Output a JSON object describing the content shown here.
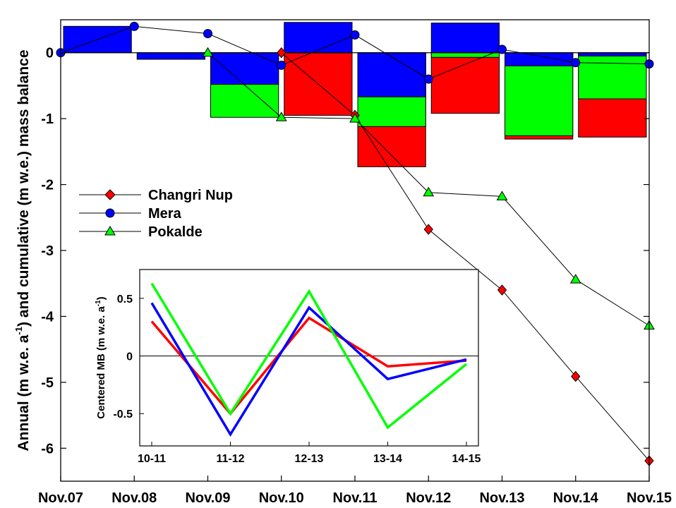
{
  "chart_data": [
    {
      "type": "bar+line",
      "title": "",
      "ylabel_parts": [
        "Annual (m w.e. a",
        "-1",
        ") and cumulative (m w.e.) mass balance"
      ],
      "xlabel": "",
      "x_ticks": [
        "Nov.07",
        "Nov.08",
        "Nov.09",
        "Nov.10",
        "Nov.11",
        "Nov.12",
        "Nov.13",
        "Nov.14",
        "Nov.15"
      ],
      "y_ticks": [
        "0",
        "-1",
        "-2",
        "-3",
        "-4",
        "-5",
        "-6"
      ],
      "ylim": [
        -6.5,
        0.5
      ],
      "legend": {
        "placement": "center-left"
      },
      "colors": {
        "changri": "#ff0000",
        "mera": "#0000ff",
        "pokalde": "#00ff00"
      },
      "annual_bars": {
        "mera": [
          {
            "period": "Nov.07-Nov.08",
            "value": 0.4
          },
          {
            "period": "Nov.08-Nov.09",
            "value": -0.1
          },
          {
            "period": "Nov.09-Nov.10",
            "value": -0.48
          },
          {
            "period": "Nov.10-Nov.11",
            "value": 0.46
          },
          {
            "period": "Nov.11-Nov.12",
            "value": -0.67
          },
          {
            "period": "Nov.12-Nov.13",
            "value": 0.45
          },
          {
            "period": "Nov.13-Nov.14",
            "value": -0.2
          },
          {
            "period": "Nov.14-Nov.15",
            "value": -0.05
          }
        ],
        "pokalde": [
          {
            "period": "Nov.09-Nov.10",
            "value": -0.98
          },
          {
            "period": "Nov.11-Nov.12",
            "value": -1.12
          },
          {
            "period": "Nov.12-Nov.13",
            "value": -0.07
          },
          {
            "period": "Nov.13-Nov.14",
            "value": -1.26
          },
          {
            "period": "Nov.14-Nov.15",
            "value": -0.7
          }
        ],
        "changri": [
          {
            "period": "Nov.10-Nov.11",
            "value": -0.95
          },
          {
            "period": "Nov.11-Nov.12",
            "value": -1.73
          },
          {
            "period": "Nov.12-Nov.13",
            "value": -0.92
          },
          {
            "period": "Nov.13-Nov.14",
            "value": -1.31
          },
          {
            "period": "Nov.14-Nov.15",
            "value": -1.28
          }
        ]
      },
      "series": [
        {
          "name": "Changri Nup",
          "marker": "diamond",
          "x": [
            "Nov.10",
            "Nov.11",
            "Nov.12",
            "Nov.13",
            "Nov.14",
            "Nov.15"
          ],
          "y": [
            0.0,
            -0.95,
            -2.68,
            -3.6,
            -4.91,
            -6.19
          ]
        },
        {
          "name": "Mera",
          "marker": "circle",
          "x": [
            "Nov.07",
            "Nov.08",
            "Nov.09",
            "Nov.10",
            "Nov.11",
            "Nov.12",
            "Nov.13",
            "Nov.14",
            "Nov.15"
          ],
          "y": [
            0.0,
            0.4,
            0.29,
            -0.19,
            0.27,
            -0.4,
            0.05,
            -0.15,
            -0.17
          ]
        },
        {
          "name": "Pokalde",
          "marker": "triangle",
          "x": [
            "Nov.09",
            "Nov.10",
            "Nov.11",
            "Nov.12",
            "Nov.13",
            "Nov.14",
            "Nov.15"
          ],
          "y": [
            0.0,
            -0.98,
            -1.0,
            -2.12,
            -2.18,
            -3.44,
            -4.14
          ]
        }
      ]
    },
    {
      "type": "line",
      "title": "",
      "ylabel_parts": [
        "Centered MB (m w.e. a",
        "-1",
        ")"
      ],
      "xlabel": "",
      "categories": [
        "10-11",
        "11-12",
        "12-13",
        "13-14",
        "14-15"
      ],
      "y_ticks": [
        "0.5",
        "0",
        "-0.5"
      ],
      "ylim": [
        -0.78,
        0.75
      ],
      "zero_line": true,
      "series": [
        {
          "color": "#ff0000",
          "values": [
            0.3,
            -0.5,
            0.33,
            -0.09,
            -0.04
          ]
        },
        {
          "color": "#0000ff",
          "values": [
            0.46,
            -0.68,
            0.42,
            -0.2,
            -0.03
          ]
        },
        {
          "color": "#00ff00",
          "values": [
            0.63,
            -0.5,
            0.56,
            -0.62,
            -0.07
          ]
        }
      ]
    }
  ]
}
